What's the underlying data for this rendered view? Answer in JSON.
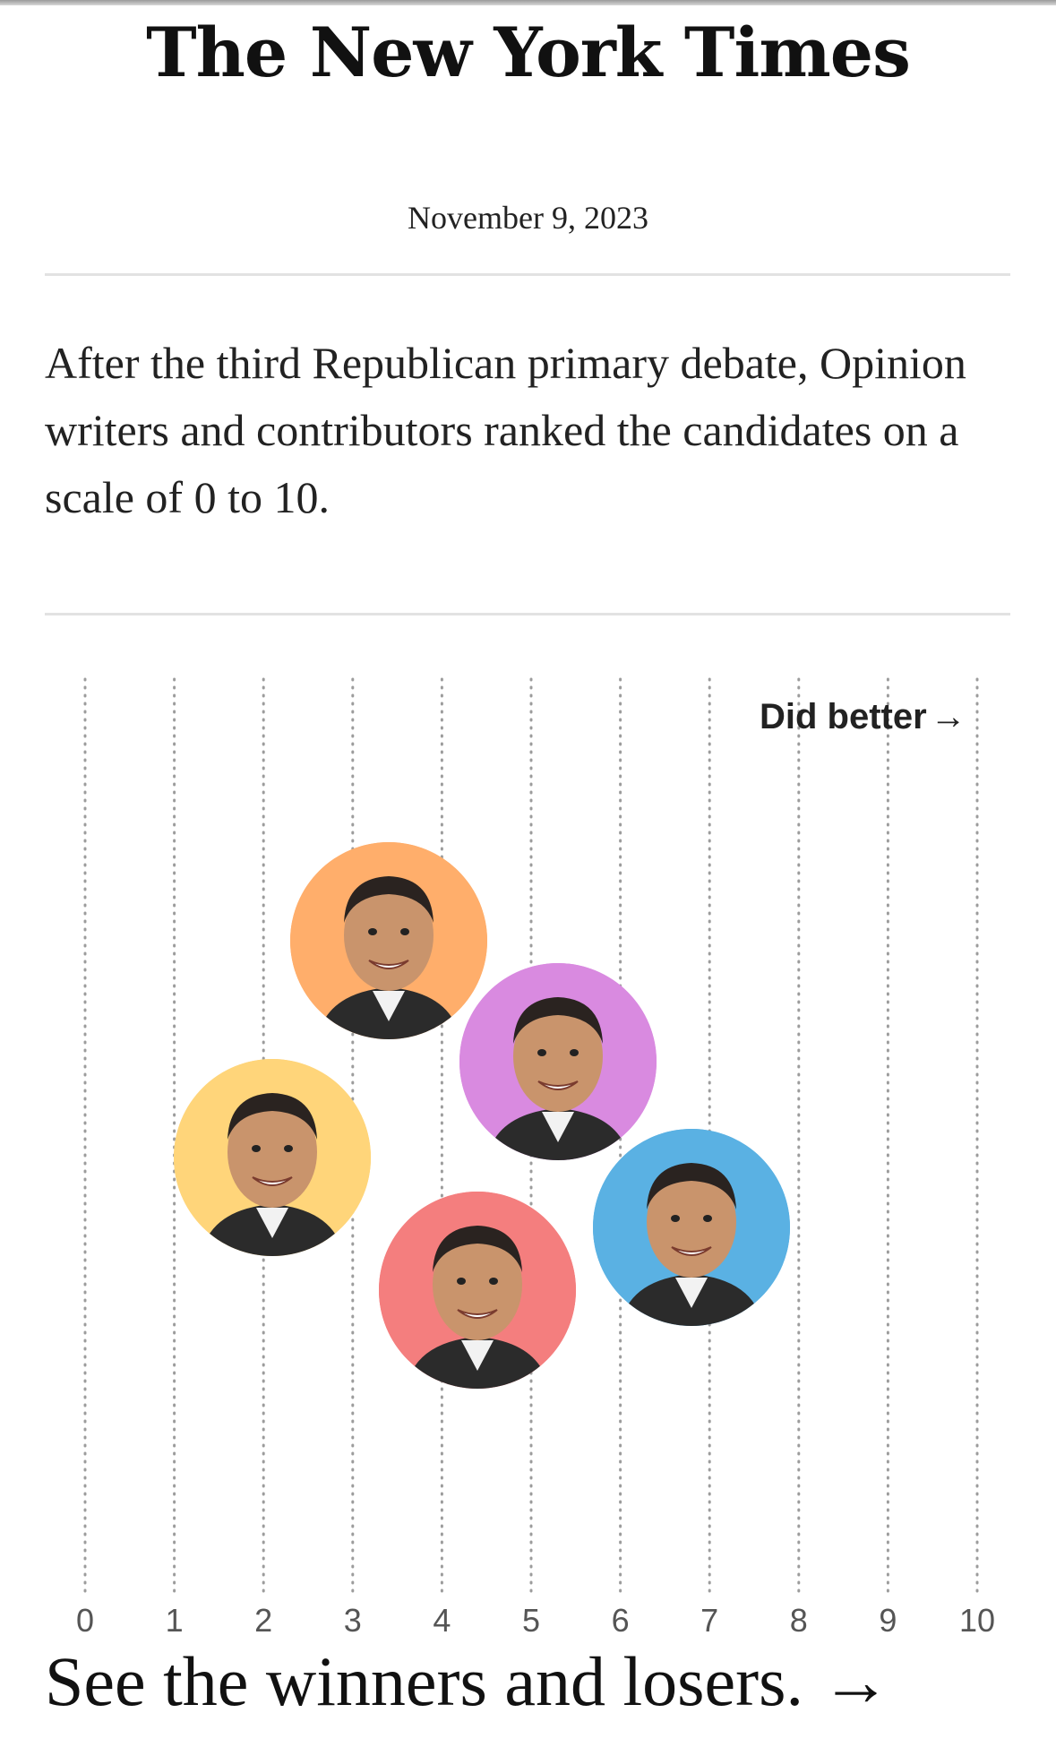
{
  "masthead": "The New York Times",
  "date": "November 9, 2023",
  "intro": "After the third Republican primary debate, Opinion writers and contributors ranked the candidates on a scale of 0 to 10.",
  "chart_data": {
    "type": "scatter",
    "annotation": "Did better",
    "annotation_arrow": "→",
    "x_ticks": [
      "0",
      "1",
      "2",
      "3",
      "4",
      "5",
      "6",
      "7",
      "8",
      "9",
      "10"
    ],
    "xlim": [
      0,
      10
    ],
    "grid": "vertical dotted lines at each integer",
    "points": [
      {
        "x": 2.1,
        "color": "#ffd57a",
        "icon": "candidate-photo"
      },
      {
        "x": 3.4,
        "color": "#ffae6b",
        "icon": "candidate-photo"
      },
      {
        "x": 4.4,
        "color": "#f47e7e",
        "icon": "candidate-photo"
      },
      {
        "x": 5.3,
        "color": "#d98ae0",
        "icon": "candidate-photo"
      },
      {
        "x": 6.8,
        "color": "#5ab1e3",
        "icon": "candidate-photo"
      }
    ]
  },
  "cta": {
    "label": "See the winners and losers.",
    "arrow": "→"
  }
}
